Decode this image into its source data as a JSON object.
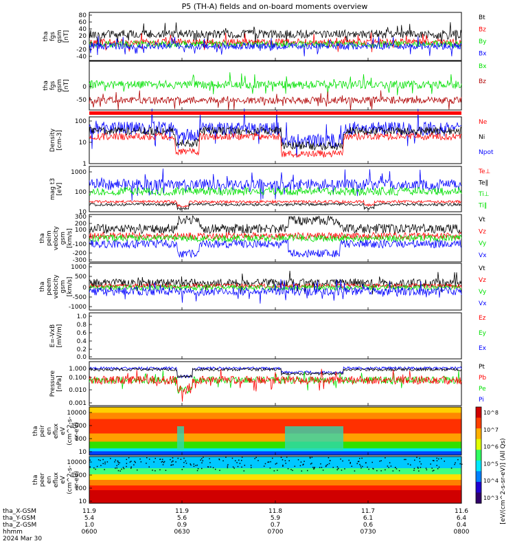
{
  "title": "P5 (TH-A) fields and on-board moments overview",
  "colors": {
    "black": "#000000",
    "red": "#ff0000",
    "green": "#00e000",
    "blue": "#0000ff",
    "darkred": "#b00000"
  },
  "panels": [
    {
      "id": "fgs-gsm",
      "ylabel": [
        "tha",
        "fgs",
        "gsm",
        "[nT]"
      ],
      "ticks": [
        "80",
        "60",
        "40",
        "20",
        "0",
        "-20",
        "-40"
      ],
      "legend": [
        {
          "text": "Bt",
          "color": "black"
        },
        {
          "text": "Bz",
          "color": "red"
        },
        {
          "text": "By",
          "color": "green"
        },
        {
          "text": "Bx",
          "color": "blue"
        }
      ]
    },
    {
      "id": "fgs-gsm-2",
      "ylabel": [
        "tha",
        "fgs",
        "gsm",
        "[nT]"
      ],
      "ticks": [
        "0",
        "-50"
      ],
      "legend": [
        {
          "text": "Bx",
          "color": "green"
        },
        {
          "text": "Bz",
          "color": "darkred"
        }
      ]
    },
    {
      "id": "density",
      "ylabel": [
        "Density",
        "[cm-3]"
      ],
      "ticks": [
        "100",
        "10",
        "1"
      ],
      "legend": [
        {
          "text": "Ne",
          "color": "red"
        },
        {
          "text": "Ni",
          "color": "black"
        },
        {
          "text": "Npot",
          "color": "blue"
        }
      ]
    },
    {
      "id": "temperature",
      "ylabel": [
        "mag t3",
        "[eV]"
      ],
      "ticks": [
        "1000",
        "100",
        "10"
      ],
      "legend": [
        {
          "text": "Te⊥",
          "color": "red"
        },
        {
          "text": "Te‖",
          "color": "black"
        },
        {
          "text": "Ti⊥",
          "color": "green"
        },
        {
          "text": "Ti‖",
          "color": "green"
        }
      ]
    },
    {
      "id": "peim-velocity",
      "ylabel": [
        "tha",
        "peim",
        "velocity",
        "gsm",
        "[km/s]"
      ],
      "ticks": [
        "300",
        "200",
        "100",
        "0",
        "-100",
        "-200",
        "-300"
      ],
      "legend": [
        {
          "text": "Vt",
          "color": "black"
        },
        {
          "text": "Vz",
          "color": "red"
        },
        {
          "text": "Vy",
          "color": "green"
        },
        {
          "text": "Vx",
          "color": "blue"
        }
      ]
    },
    {
      "id": "peem-velocity",
      "ylabel": [
        "tha",
        "peem",
        "velocity",
        "gsm",
        "[km/s]"
      ],
      "ticks": [
        "1000",
        "500",
        "0",
        "-500",
        "-1000"
      ],
      "legend": [
        {
          "text": "Vt",
          "color": "black"
        },
        {
          "text": "Vz",
          "color": "red"
        },
        {
          "text": "Vy",
          "color": "green"
        },
        {
          "text": "Vx",
          "color": "blue"
        }
      ]
    },
    {
      "id": "efield",
      "ylabel": [
        "E=-VxB",
        "[mV/m]"
      ],
      "ticks": [
        "1.0",
        "0.8",
        "0.6",
        "0.4",
        "0.2",
        "0.0"
      ],
      "legend": [
        {
          "text": "Ez",
          "color": "red"
        },
        {
          "text": "Ey",
          "color": "green"
        },
        {
          "text": "Ex",
          "color": "blue"
        }
      ]
    },
    {
      "id": "pressure",
      "ylabel": [
        "Pressure",
        "[nPa]"
      ],
      "ticks": [
        "1.000",
        "0.100",
        "0.010",
        "0.001"
      ],
      "legend": [
        {
          "text": "Pt",
          "color": "black"
        },
        {
          "text": "Pb",
          "color": "red"
        },
        {
          "text": "Pe",
          "color": "green"
        },
        {
          "text": "Pi",
          "color": "blue"
        }
      ]
    },
    {
      "id": "peir-spectrogram",
      "ylabel": [
        "tha",
        "peir",
        "en",
        "eflux",
        "eV",
        "(cm^2-s-",
        "sr-eV)"
      ],
      "ticks": [
        "10000",
        "1000",
        "100",
        "10"
      ]
    },
    {
      "id": "peer-spectrogram",
      "ylabel": [
        "tha",
        "peer",
        "en",
        "eflux",
        "eV",
        "(cm^2-s-",
        "sr-eV)"
      ],
      "ticks": [
        "10000",
        "1000",
        "100",
        "10"
      ]
    }
  ],
  "colorbar": {
    "label": "[eV/(cm^2-s-sr-eV)] (All Qs)",
    "ticks": [
      "10^8",
      "10^7",
      "10^6",
      "10^5",
      "10^4",
      "10^3"
    ]
  },
  "xaxis": {
    "rows": [
      {
        "label": "tha_X-GSM",
        "values": [
          "11.9",
          "11.9",
          "11.8",
          "11.7",
          "11.6"
        ]
      },
      {
        "label": "tha_Y-GSM",
        "values": [
          "5.4",
          "5.6",
          "5.9",
          "6.1",
          "6.4"
        ]
      },
      {
        "label": "tha_Z-GSM",
        "values": [
          "1.0",
          "0.9",
          "0.7",
          "0.6",
          "0.4"
        ]
      },
      {
        "label": "hhmm",
        "values": [
          "0600",
          "0630",
          "0700",
          "0730",
          "0800"
        ]
      }
    ],
    "date": "2024 Mar 30"
  },
  "chart_data": {
    "type": "line",
    "title": "P5 (TH-A) fields and on-board moments overview",
    "x": [
      "0600",
      "0630",
      "0700",
      "0730",
      "0800"
    ],
    "xlabel": "hhmm",
    "date": "2024 Mar 30",
    "panels": [
      {
        "ylabel": "tha fgs gsm [nT]",
        "ylim": [
          -40,
          90
        ],
        "series": [
          {
            "name": "Bt",
            "level": 20
          },
          {
            "name": "Bz",
            "level": 5
          },
          {
            "name": "By",
            "level": 0
          },
          {
            "name": "Bx",
            "level": -5
          }
        ]
      },
      {
        "ylabel": "tha fgs gsm [nT]",
        "ylim": [
          -80,
          30
        ],
        "series": [
          {
            "name": "Bx",
            "level": 0
          },
          {
            "name": "Bz",
            "level": -55
          }
        ]
      },
      {
        "ylabel": "Density [cm-3]",
        "scale": "log",
        "ylim": [
          1,
          100
        ],
        "series": [
          {
            "name": "Ne",
            "level": 20
          },
          {
            "name": "Ni",
            "level": 30
          },
          {
            "name": "Npot",
            "level": 50
          }
        ]
      },
      {
        "ylabel": "mag t3 [eV]",
        "scale": "log",
        "ylim": [
          10,
          1000
        ],
        "series": [
          {
            "name": "Te⊥",
            "level": 30
          },
          {
            "name": "Te‖",
            "level": 25
          },
          {
            "name": "Ti⊥",
            "level": 150
          },
          {
            "name": "Ti‖",
            "level": 150
          }
        ]
      },
      {
        "ylabel": "tha peim velocity gsm [km/s]",
        "ylim": [
          -300,
          300
        ],
        "series": [
          {
            "name": "Vt",
            "level": 150
          },
          {
            "name": "Vz",
            "level": 30
          },
          {
            "name": "Vy",
            "level": 0
          },
          {
            "name": "Vx",
            "level": -100
          }
        ]
      },
      {
        "ylabel": "tha peem velocity gsm [km/s]",
        "ylim": [
          -1000,
          1000
        ],
        "series": [
          {
            "name": "Vt",
            "level": 200
          },
          {
            "name": "Vz",
            "level": 50
          },
          {
            "name": "Vy",
            "level": 0
          },
          {
            "name": "Vx",
            "level": -200
          }
        ]
      },
      {
        "ylabel": "E=-VxB [mV/m]",
        "ylim": [
          0,
          1
        ],
        "series": [
          {
            "name": "Ez"
          },
          {
            "name": "Ey"
          },
          {
            "name": "Ex"
          }
        ]
      },
      {
        "ylabel": "Pressure [nPa]",
        "scale": "log",
        "ylim": [
          0.001,
          1
        ],
        "series": [
          {
            "name": "Pt",
            "level": 0.6
          },
          {
            "name": "Pb",
            "level": 0.1
          },
          {
            "name": "Pe",
            "level": 0.08
          },
          {
            "name": "Pi",
            "level": 0.4
          }
        ]
      }
    ]
  }
}
